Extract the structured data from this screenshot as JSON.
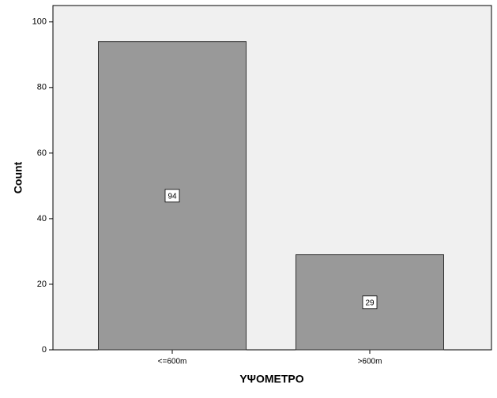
{
  "chart_data": {
    "type": "bar",
    "categories": [
      "<=600m",
      ">600m"
    ],
    "values": [
      94,
      29
    ],
    "color": "#999999",
    "xlabel": "ΥΨΟΜΕΤΡΟ",
    "ylabel": "Count",
    "ylim": [
      0,
      105
    ],
    "yticks": [
      0,
      20,
      40,
      60,
      80,
      100
    ],
    "grid": false
  }
}
